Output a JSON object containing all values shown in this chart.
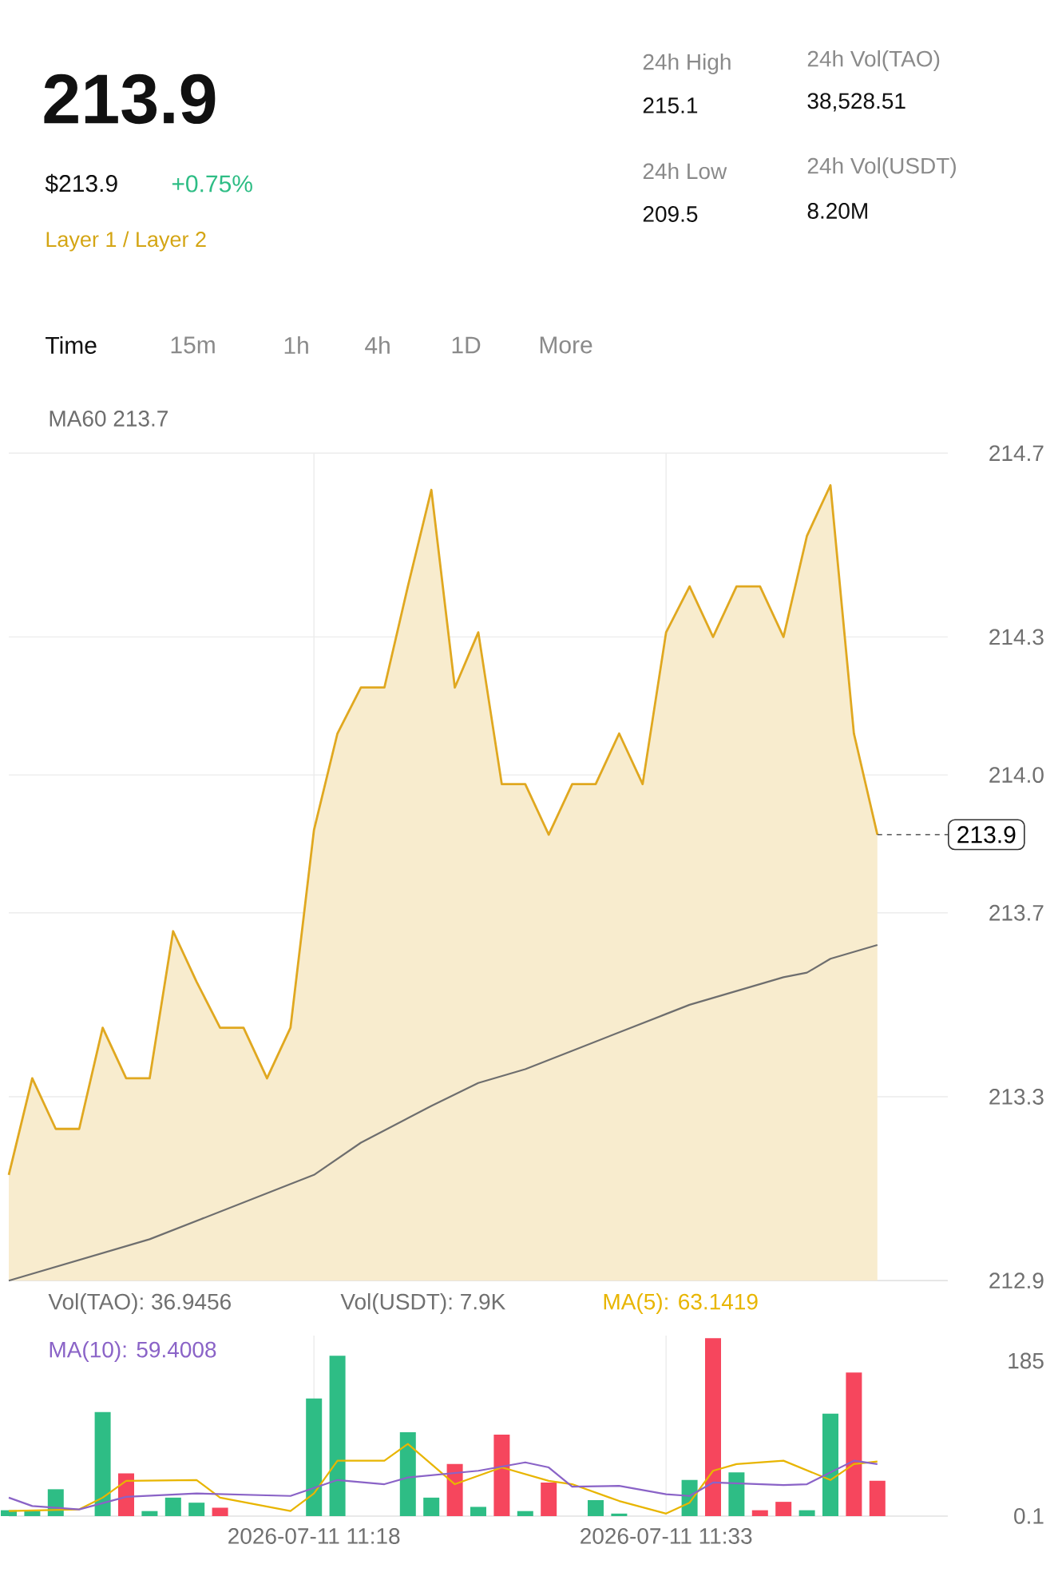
{
  "chart_data": [
    {
      "type": "other",
      "annotations": [
        "213.9",
        "$213.9",
        "+0.75%",
        "Layer 1 / Layer 2",
        "24h High",
        "215.1",
        "24h Vol(TAO)",
        "38,528.51",
        "24h Low",
        "209.5",
        "24h Vol(USDT)",
        "8.20M",
        "Time",
        "15m",
        "1h",
        "4h",
        "1D",
        "More"
      ]
    },
    {
      "type": "area",
      "x": [
        "2026-07-11T11:05",
        "2026-07-11T11:06",
        "2026-07-11T11:07",
        "2026-07-11T11:08",
        "2026-07-11T11:09",
        "2026-07-11T11:10",
        "2026-07-11T11:11",
        "2026-07-11T11:12",
        "2026-07-11T11:13",
        "2026-07-11T11:14",
        "2026-07-11T11:15",
        "2026-07-11T11:16",
        "2026-07-11T11:17",
        "2026-07-11T11:18",
        "2026-07-11T11:19",
        "2026-07-11T11:20",
        "2026-07-11T11:21",
        "2026-07-11T11:22",
        "2026-07-11T11:23",
        "2026-07-11T11:24",
        "2026-07-11T11:25",
        "2026-07-11T11:26",
        "2026-07-11T11:27",
        "2026-07-11T11:28",
        "2026-07-11T11:29",
        "2026-07-11T11:30",
        "2026-07-11T11:31",
        "2026-07-11T11:32",
        "2026-07-11T11:33",
        "2026-07-11T11:34",
        "2026-07-11T11:35",
        "2026-07-11T11:36",
        "2026-07-11T11:37",
        "2026-07-11T11:38",
        "2026-07-11T11:39",
        "2026-07-11T11:40",
        "2026-07-11T11:41",
        "2026-07-11T11:42"
      ],
      "series": [
        {
          "type": "area",
          "color": "#e0a820",
          "values": [
            213.13,
            213.34,
            213.23,
            213.23,
            213.45,
            213.34,
            213.34,
            213.66,
            213.55,
            213.45,
            213.45,
            213.34,
            213.45,
            213.88,
            214.09,
            214.19,
            214.19,
            214.41,
            214.62,
            214.19,
            214.31,
            213.98,
            213.98,
            213.87,
            213.98,
            213.98,
            214.09,
            213.98,
            214.31,
            214.41,
            214.3,
            214.41,
            214.41,
            214.3,
            214.52,
            214.63,
            214.09,
            213.87
          ]
        },
        {
          "type": "line",
          "name": "MA60 213.7",
          "color": "#6e6e6e",
          "x": [
            "2026-07-11T11:05",
            "2026-07-11T11:11",
            "2026-07-11T11:17",
            "2026-07-11T11:18",
            "2026-07-11T11:20",
            "2026-07-11T11:23",
            "2026-07-11T11:25",
            "2026-07-11T11:27",
            "2026-07-11T11:29",
            "2026-07-11T11:33",
            "2026-07-11T11:34",
            "2026-07-11T11:38",
            "2026-07-11T11:39",
            "2026-07-11T11:40",
            "2026-07-11T11:42"
          ],
          "values": [
            212.9,
            212.99,
            213.11,
            213.13,
            213.2,
            213.28,
            213.33,
            213.36,
            213.4,
            213.48,
            213.5,
            213.56,
            213.57,
            213.6,
            213.63
          ]
        }
      ],
      "xlim": [
        "2026-07-11T11:05",
        "2026-07-11T11:45"
      ],
      "xticks": [
        {
          "value": "2026-07-11T11:18",
          "label": null
        },
        {
          "value": "2026-07-11T11:33",
          "label": null
        }
      ],
      "ylim": [
        212.9,
        214.7
      ],
      "yticks": [
        212.9,
        213.3,
        213.7,
        {
          "value": 214,
          "label": "214.0"
        },
        214.3,
        214.7
      ],
      "grid": true,
      "tick_labels": "y",
      "ref_lines": [
        {
          "axis": "y",
          "value": 213.87,
          "label": "213.9",
          "line_style": "dashed",
          "color": "#333333"
        }
      ]
    },
    {
      "type": "bar",
      "x": [
        "2026-07-11T11:05",
        "2026-07-11T11:06",
        "2026-07-11T11:07",
        "2026-07-11T11:08",
        "2026-07-11T11:09",
        "2026-07-11T11:10",
        "2026-07-11T11:11",
        "2026-07-11T11:12",
        "2026-07-11T11:13",
        "2026-07-11T11:14",
        "2026-07-11T11:15",
        "2026-07-11T11:16",
        "2026-07-11T11:17",
        "2026-07-11T11:18",
        "2026-07-11T11:19",
        "2026-07-11T11:20",
        "2026-07-11T11:21",
        "2026-07-11T11:22",
        "2026-07-11T11:23",
        "2026-07-11T11:24",
        "2026-07-11T11:25",
        "2026-07-11T11:26",
        "2026-07-11T11:27",
        "2026-07-11T11:28",
        "2026-07-11T11:29",
        "2026-07-11T11:30",
        "2026-07-11T11:31",
        "2026-07-11T11:32",
        "2026-07-11T11:33",
        "2026-07-11T11:34",
        "2026-07-11T11:35",
        "2026-07-11T11:36",
        "2026-07-11T11:37",
        "2026-07-11T11:38",
        "2026-07-11T11:39",
        "2026-07-11T11:40",
        "2026-07-11T11:41",
        "2026-07-11T11:42"
      ],
      "series": [
        {
          "type": "bar",
          "values": [
            7,
            6,
            32,
            null,
            124,
            51,
            6,
            22,
            16,
            10,
            null,
            null,
            null,
            140,
            191,
            null,
            null,
            100,
            22,
            62,
            11,
            97,
            6,
            40,
            null,
            19,
            3,
            null,
            null,
            43,
            212,
            52,
            7,
            17,
            7,
            122,
            171,
            42
          ],
          "colors": [
            "#2ebd85",
            "#2ebd85",
            "#2ebd85",
            "#2ebd85",
            "#2ebd85",
            "#f6465d",
            "#2ebd85",
            "#2ebd85",
            "#2ebd85",
            "#f6465d",
            "#2ebd85",
            "#2ebd85",
            "#2ebd85",
            "#2ebd85",
            "#2ebd85",
            "#2ebd85",
            "#2ebd85",
            "#2ebd85",
            "#2ebd85",
            "#f6465d",
            "#2ebd85",
            "#f6465d",
            "#2ebd85",
            "#f6465d",
            "#2ebd85",
            "#2ebd85",
            "#2ebd85",
            "#2ebd85",
            "#2ebd85",
            "#2ebd85",
            "#f6465d",
            "#2ebd85",
            "#f6465d",
            "#f6465d",
            "#2ebd85",
            "#2ebd85",
            "#f6465d",
            "#f6465d"
          ]
        },
        {
          "type": "line",
          "name": "MA(5): 63.1419",
          "color": "#e8b500",
          "x": [
            "2026-07-11T11:05",
            "2026-07-11T11:08",
            "2026-07-11T11:09",
            "2026-07-11T11:10",
            "2026-07-11T11:13",
            "2026-07-11T11:14",
            "2026-07-11T11:17",
            "2026-07-11T11:18",
            "2026-07-11T11:19",
            "2026-07-11T11:21",
            "2026-07-11T11:22",
            "2026-07-11T11:24",
            "2026-07-11T11:26",
            "2026-07-11T11:28",
            "2026-07-11T11:29",
            "2026-07-11T11:31",
            "2026-07-11T11:33",
            "2026-07-11T11:34",
            "2026-07-11T11:35",
            "2026-07-11T11:36",
            "2026-07-11T11:38",
            "2026-07-11T11:40",
            "2026-07-11T11:41",
            "2026-07-11T11:42"
          ],
          "values": [
            6,
            8,
            22,
            42,
            43,
            22,
            6,
            27,
            66,
            66,
            86,
            38,
            58,
            42,
            38,
            18,
            3,
            16,
            54,
            62,
            66,
            43,
            62,
            65
          ]
        },
        {
          "type": "line",
          "name": "MA(10): 59.4008",
          "color": "#8a63c7",
          "x": [
            "2026-07-11T11:05",
            "2026-07-11T11:06",
            "2026-07-11T11:08",
            "2026-07-11T11:10",
            "2026-07-11T11:13",
            "2026-07-11T11:17",
            "2026-07-11T11:19",
            "2026-07-11T11:21",
            "2026-07-11T11:22",
            "2026-07-11T11:25",
            "2026-07-11T11:27",
            "2026-07-11T11:28",
            "2026-07-11T11:29",
            "2026-07-11T11:31",
            "2026-07-11T11:33",
            "2026-07-11T11:34",
            "2026-07-11T11:35",
            "2026-07-11T11:38",
            "2026-07-11T11:39",
            "2026-07-11T11:41",
            "2026-07-11T11:42"
          ],
          "values": [
            22,
            12,
            8,
            23,
            27,
            24,
            43,
            38,
            46,
            54,
            64,
            58,
            35,
            36,
            26,
            24,
            40,
            37,
            38,
            66,
            62
          ]
        }
      ],
      "xlim": [
        "2026-07-11T11:05",
        "2026-07-11T11:45"
      ],
      "xticks": [
        {
          "value": "2026-07-11T11:18",
          "label": "2026-07-11 11:18"
        },
        {
          "value": "2026-07-11T11:33",
          "label": "2026-07-11 11:33"
        }
      ],
      "ylim": [
        0,
        215
      ],
      "yticks": [
        0.1,
        185
      ],
      "grid": "x",
      "annotations": [
        "Vol(TAO): 36.9456",
        "Vol(USDT): 7.9K"
      ]
    }
  ]
}
